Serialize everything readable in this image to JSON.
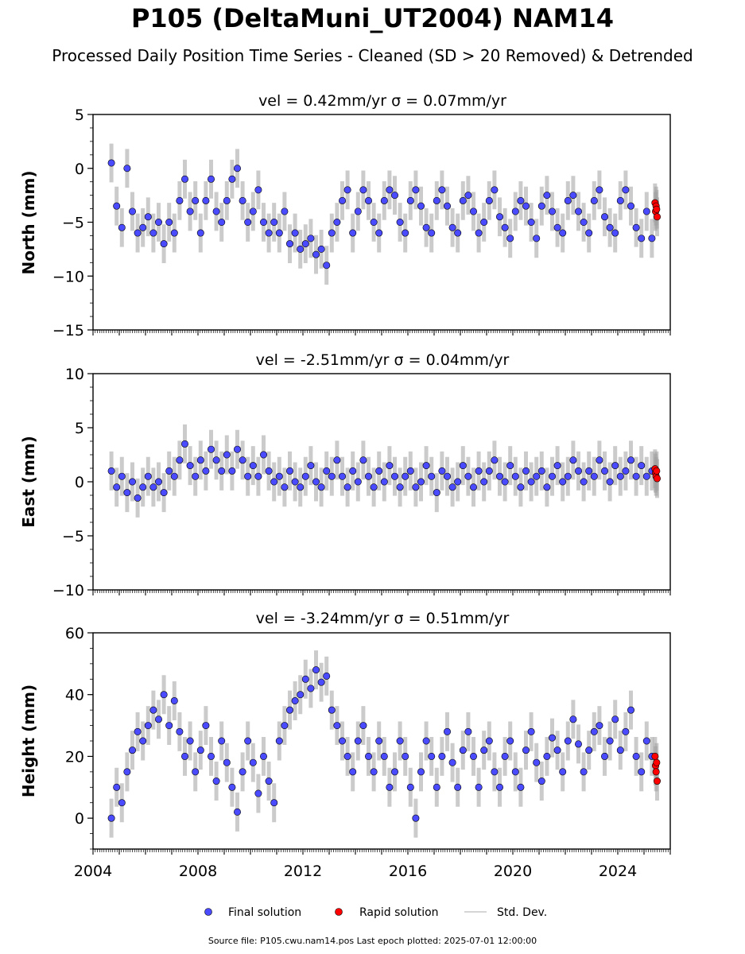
{
  "header": {
    "title": "P105 (DeltaMuni_UT2004) NAM14",
    "subtitle": "Processed Daily Position Time Series - Cleaned (SD > 20 Removed) & Detrended"
  },
  "footer": {
    "source": "Source file: P105.cwu.nam14.pos  Last epoch plotted: 2025-07-01 12:00:00"
  },
  "legend": {
    "items": [
      {
        "label": "Final solution",
        "color": "#4a4aff"
      },
      {
        "label": "Rapid solution",
        "color": "#ff0000"
      },
      {
        "label": "Std. Dev.",
        "color": "#c8c8c8"
      }
    ]
  },
  "colors": {
    "final": "#4a4aff",
    "rapid": "#ff0000",
    "stddev": "#a0a0a0"
  },
  "chart_data": [
    {
      "type": "scatter",
      "title": "vel = 0.42mm/yr   σ = 0.07mm/yr",
      "ylabel": "North (mm)",
      "ylim": [
        -15,
        5
      ],
      "yticks": [
        -15,
        -10,
        -5,
        0,
        5
      ],
      "ytick_labels": [
        "−15",
        "−10",
        "−5",
        "0",
        "5"
      ],
      "xlim": [
        2004.0,
        2026.0
      ],
      "xticks": [
        2004,
        2008,
        2012,
        2016,
        2020,
        2024
      ],
      "xtick_labels": [
        "2004",
        "2008",
        "2012",
        "2016",
        "2020",
        "2024"
      ],
      "series": [
        {
          "name": "Final solution",
          "x": [
            2004.7,
            2004.9,
            2005.1,
            2005.3,
            2005.5,
            2005.7,
            2005.9,
            2006.1,
            2006.3,
            2006.5,
            2006.7,
            2006.9,
            2007.1,
            2007.3,
            2007.5,
            2007.7,
            2007.9,
            2008.1,
            2008.3,
            2008.5,
            2008.7,
            2008.9,
            2009.1,
            2009.3,
            2009.5,
            2009.7,
            2009.9,
            2010.1,
            2010.3,
            2010.5,
            2010.7,
            2010.9,
            2011.1,
            2011.3,
            2011.5,
            2011.7,
            2011.9,
            2012.1,
            2012.3,
            2012.5,
            2012.7,
            2012.9,
            2013.1,
            2013.3,
            2013.5,
            2013.7,
            2013.9,
            2014.1,
            2014.3,
            2014.5,
            2014.7,
            2014.9,
            2015.1,
            2015.3,
            2015.5,
            2015.7,
            2015.9,
            2016.1,
            2016.3,
            2016.5,
            2016.7,
            2016.9,
            2017.1,
            2017.3,
            2017.5,
            2017.7,
            2017.9,
            2018.1,
            2018.3,
            2018.5,
            2018.7,
            2018.9,
            2019.1,
            2019.3,
            2019.5,
            2019.7,
            2019.9,
            2020.1,
            2020.3,
            2020.5,
            2020.7,
            2020.9,
            2021.1,
            2021.3,
            2021.5,
            2021.7,
            2021.9,
            2022.1,
            2022.3,
            2022.5,
            2022.7,
            2022.9,
            2023.1,
            2023.3,
            2023.5,
            2023.7,
            2023.9,
            2024.1,
            2024.3,
            2024.5,
            2024.7,
            2024.9,
            2025.1,
            2025.3
          ],
          "y": [
            0.5,
            -3.5,
            -5.5,
            0.0,
            -4.0,
            -6.0,
            -5.5,
            -4.5,
            -6.0,
            -5.0,
            -7.0,
            -5.0,
            -6.0,
            -3.0,
            -1.0,
            -4.0,
            -3.0,
            -6.0,
            -3.0,
            -1.0,
            -4.0,
            -5.0,
            -3.0,
            -1.0,
            0.0,
            -3.0,
            -5.0,
            -4.0,
            -2.0,
            -5.0,
            -6.0,
            -5.0,
            -6.0,
            -4.0,
            -7.0,
            -6.0,
            -7.5,
            -7.0,
            -6.5,
            -8.0,
            -7.5,
            -9.0,
            -6.0,
            -5.0,
            -3.0,
            -2.0,
            -6.0,
            -4.0,
            -2.0,
            -3.0,
            -5.0,
            -6.0,
            -3.0,
            -2.0,
            -2.5,
            -5.0,
            -6.0,
            -3.0,
            -2.0,
            -3.5,
            -5.5,
            -6.0,
            -3.0,
            -2.0,
            -3.5,
            -5.5,
            -6.0,
            -3.0,
            -2.5,
            -4.0,
            -6.0,
            -5.0,
            -3.0,
            -2.0,
            -4.5,
            -5.5,
            -6.5,
            -4.0,
            -3.0,
            -3.5,
            -5.0,
            -6.5,
            -3.5,
            -2.5,
            -4.0,
            -5.5,
            -6.0,
            -3.0,
            -2.5,
            -4.0,
            -5.0,
            -6.0,
            -3.0,
            -2.0,
            -4.5,
            -5.5,
            -6.0,
            -3.0,
            -2.0,
            -3.5,
            -5.5,
            -6.5,
            -4.0,
            -6.5
          ]
        },
        {
          "name": "Rapid solution",
          "x": [
            2025.42,
            2025.44,
            2025.46,
            2025.48,
            2025.5
          ],
          "y": [
            -3.2,
            -4.0,
            -3.5,
            -3.8,
            -4.5
          ]
        }
      ]
    },
    {
      "type": "scatter",
      "title": "vel = -2.51mm/yr   σ = 0.04mm/yr",
      "ylabel": "East (mm)",
      "ylim": [
        -10,
        10
      ],
      "yticks": [
        -10,
        -5,
        0,
        5,
        10
      ],
      "ytick_labels": [
        "−10",
        "−5",
        "0",
        "5",
        "10"
      ],
      "xlim": [
        2004.0,
        2026.0
      ],
      "xticks": [
        2004,
        2008,
        2012,
        2016,
        2020,
        2024
      ],
      "xtick_labels": [
        "2004",
        "2008",
        "2012",
        "2016",
        "2020",
        "2024"
      ],
      "series": [
        {
          "name": "Final solution",
          "x": [
            2004.7,
            2004.9,
            2005.1,
            2005.3,
            2005.5,
            2005.7,
            2005.9,
            2006.1,
            2006.3,
            2006.5,
            2006.7,
            2006.9,
            2007.1,
            2007.3,
            2007.5,
            2007.7,
            2007.9,
            2008.1,
            2008.3,
            2008.5,
            2008.7,
            2008.9,
            2009.1,
            2009.3,
            2009.5,
            2009.7,
            2009.9,
            2010.1,
            2010.3,
            2010.5,
            2010.7,
            2010.9,
            2011.1,
            2011.3,
            2011.5,
            2011.7,
            2011.9,
            2012.1,
            2012.3,
            2012.5,
            2012.7,
            2012.9,
            2013.1,
            2013.3,
            2013.5,
            2013.7,
            2013.9,
            2014.1,
            2014.3,
            2014.5,
            2014.7,
            2014.9,
            2015.1,
            2015.3,
            2015.5,
            2015.7,
            2015.9,
            2016.1,
            2016.3,
            2016.5,
            2016.7,
            2016.9,
            2017.1,
            2017.3,
            2017.5,
            2017.7,
            2017.9,
            2018.1,
            2018.3,
            2018.5,
            2018.7,
            2018.9,
            2019.1,
            2019.3,
            2019.5,
            2019.7,
            2019.9,
            2020.1,
            2020.3,
            2020.5,
            2020.7,
            2020.9,
            2021.1,
            2021.3,
            2021.5,
            2021.7,
            2021.9,
            2022.1,
            2022.3,
            2022.5,
            2022.7,
            2022.9,
            2023.1,
            2023.3,
            2023.5,
            2023.7,
            2023.9,
            2024.1,
            2024.3,
            2024.5,
            2024.7,
            2024.9,
            2025.1,
            2025.3
          ],
          "y": [
            1.0,
            -0.5,
            0.5,
            -1.0,
            0.0,
            -1.5,
            -0.5,
            0.5,
            -0.5,
            0.0,
            -1.0,
            1.0,
            0.5,
            2.0,
            3.5,
            1.5,
            0.5,
            2.0,
            1.0,
            3.0,
            2.0,
            1.0,
            2.5,
            1.0,
            3.0,
            2.0,
            0.5,
            1.5,
            0.5,
            2.5,
            1.0,
            0.0,
            0.5,
            -0.5,
            1.0,
            0.0,
            -0.5,
            0.5,
            1.5,
            0.0,
            -0.5,
            1.0,
            0.5,
            2.0,
            0.5,
            -0.5,
            1.0,
            0.0,
            2.0,
            0.5,
            -0.5,
            1.0,
            0.0,
            1.5,
            0.5,
            -0.5,
            0.5,
            1.0,
            -0.5,
            0.0,
            1.5,
            0.5,
            -1.0,
            1.0,
            0.5,
            -0.5,
            0.0,
            1.5,
            0.5,
            -0.5,
            1.0,
            0.0,
            1.0,
            2.0,
            0.5,
            0.0,
            1.5,
            0.5,
            -0.5,
            1.0,
            0.0,
            0.5,
            1.0,
            -0.5,
            0.5,
            1.5,
            0.0,
            0.5,
            2.0,
            1.0,
            0.0,
            1.0,
            0.5,
            2.0,
            1.0,
            0.0,
            1.5,
            0.5,
            1.0,
            2.0,
            0.5,
            1.5,
            0.5,
            1.0
          ]
        },
        {
          "name": "Rapid solution",
          "x": [
            2025.42,
            2025.44,
            2025.46,
            2025.48,
            2025.5
          ],
          "y": [
            1.2,
            0.8,
            0.5,
            1.0,
            0.3
          ]
        }
      ]
    },
    {
      "type": "scatter",
      "title": "vel = -3.24mm/yr   σ = 0.51mm/yr",
      "ylabel": "Height (mm)",
      "ylim": [
        -10,
        60
      ],
      "yticks": [
        0,
        20,
        40,
        60
      ],
      "ytick_labels": [
        "0",
        "20",
        "40",
        "60"
      ],
      "xlim": [
        2004.0,
        2026.0
      ],
      "xticks": [
        2004,
        2008,
        2012,
        2016,
        2020,
        2024
      ],
      "xtick_labels": [
        "2004",
        "2008",
        "2012",
        "2016",
        "2020",
        "2024"
      ],
      "series": [
        {
          "name": "Final solution",
          "x": [
            2004.7,
            2004.9,
            2005.1,
            2005.3,
            2005.5,
            2005.7,
            2005.9,
            2006.1,
            2006.3,
            2006.5,
            2006.7,
            2006.9,
            2007.1,
            2007.3,
            2007.5,
            2007.7,
            2007.9,
            2008.1,
            2008.3,
            2008.5,
            2008.7,
            2008.9,
            2009.1,
            2009.3,
            2009.5,
            2009.7,
            2009.9,
            2010.1,
            2010.3,
            2010.5,
            2010.7,
            2010.9,
            2011.1,
            2011.3,
            2011.5,
            2011.7,
            2011.9,
            2012.1,
            2012.3,
            2012.5,
            2012.7,
            2012.9,
            2013.1,
            2013.3,
            2013.5,
            2013.7,
            2013.9,
            2014.1,
            2014.3,
            2014.5,
            2014.7,
            2014.9,
            2015.1,
            2015.3,
            2015.5,
            2015.7,
            2015.9,
            2016.1,
            2016.3,
            2016.5,
            2016.7,
            2016.9,
            2017.1,
            2017.3,
            2017.5,
            2017.7,
            2017.9,
            2018.1,
            2018.3,
            2018.5,
            2018.7,
            2018.9,
            2019.1,
            2019.3,
            2019.5,
            2019.7,
            2019.9,
            2020.1,
            2020.3,
            2020.5,
            2020.7,
            2020.9,
            2021.1,
            2021.3,
            2021.5,
            2021.7,
            2021.9,
            2022.1,
            2022.3,
            2022.5,
            2022.7,
            2022.9,
            2023.1,
            2023.3,
            2023.5,
            2023.7,
            2023.9,
            2024.1,
            2024.3,
            2024.5,
            2024.7,
            2024.9,
            2025.1,
            2025.3
          ],
          "y": [
            0.0,
            10.0,
            5.0,
            15.0,
            22.0,
            28.0,
            25.0,
            30.0,
            35.0,
            32.0,
            40.0,
            30.0,
            38.0,
            28.0,
            20.0,
            25.0,
            15.0,
            22.0,
            30.0,
            20.0,
            12.0,
            25.0,
            18.0,
            10.0,
            2.0,
            15.0,
            25.0,
            18.0,
            8.0,
            20.0,
            12.0,
            5.0,
            25.0,
            30.0,
            35.0,
            38.0,
            40.0,
            45.0,
            42.0,
            48.0,
            44.0,
            46.0,
            35.0,
            30.0,
            25.0,
            20.0,
            15.0,
            25.0,
            30.0,
            20.0,
            15.0,
            25.0,
            20.0,
            10.0,
            15.0,
            25.0,
            20.0,
            10.0,
            0.0,
            15.0,
            25.0,
            20.0,
            10.0,
            20.0,
            28.0,
            18.0,
            10.0,
            22.0,
            28.0,
            20.0,
            10.0,
            22.0,
            25.0,
            15.0,
            10.0,
            20.0,
            25.0,
            15.0,
            10.0,
            22.0,
            28.0,
            18.0,
            12.0,
            20.0,
            26.0,
            22.0,
            15.0,
            25.0,
            32.0,
            24.0,
            15.0,
            22.0,
            28.0,
            30.0,
            20.0,
            25.0,
            32.0,
            22.0,
            28.0,
            35.0,
            20.0,
            15.0,
            25.0,
            20.0
          ]
        },
        {
          "name": "Rapid solution",
          "x": [
            2025.42,
            2025.44,
            2025.46,
            2025.48,
            2025.5
          ],
          "y": [
            20.0,
            17.0,
            15.0,
            18.0,
            12.0
          ]
        }
      ]
    }
  ]
}
